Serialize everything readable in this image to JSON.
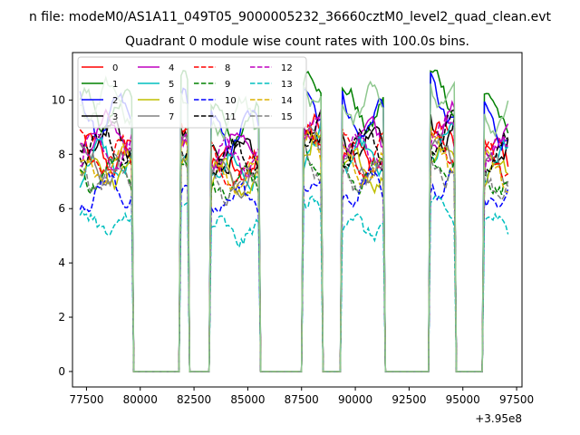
{
  "chart_data": {
    "type": "line",
    "suptitle": "n file: modeM0/AS1A11_049T05_9000005232_36660cztM0_level2_quad_clean.evt",
    "title": "Quadrant 0 module wise count rates with 100.0s bins.",
    "xlabel": "",
    "ylabel": "",
    "x_offset_label": "+3.95e8",
    "xlim": [
      76850,
      97750
    ],
    "ylim": [
      -0.57,
      11.75
    ],
    "xticks": [
      77500,
      80000,
      82500,
      85000,
      87500,
      90000,
      92500,
      95000,
      97500
    ],
    "xtick_labels": [
      "77500",
      "80000",
      "82500",
      "85000",
      "87500",
      "90000",
      "92500",
      "95000",
      "97500"
    ],
    "yticks": [
      0,
      2,
      4,
      6,
      8,
      10
    ],
    "ytick_labels": [
      "0",
      "2",
      "4",
      "6",
      "8",
      "10"
    ],
    "grid": false,
    "legend_position": "top-left",
    "legend_columns": 4,
    "x_unit_note": "time offset seconds, 100 s bins",
    "segments": [
      {
        "start": 77200,
        "end": 79600,
        "level": 1.0
      },
      {
        "start": 81900,
        "end": 82200,
        "level": 1.05
      },
      {
        "start": 83300,
        "end": 85500,
        "level": 0.95
      },
      {
        "start": 87600,
        "end": 88400,
        "level": 1.08
      },
      {
        "start": 89400,
        "end": 91300,
        "level": 1.0
      },
      {
        "start": 93500,
        "end": 94600,
        "level": 1.06
      },
      {
        "start": 96000,
        "end": 97100,
        "level": 0.98
      }
    ],
    "series": [
      {
        "name": "0",
        "color": "#ff0000",
        "dash": "solid",
        "mean": 8.0
      },
      {
        "name": "1",
        "color": "#008000",
        "dash": "solid",
        "mean": 9.6
      },
      {
        "name": "2",
        "color": "#0000ff",
        "dash": "solid",
        "mean": 9.3
      },
      {
        "name": "3",
        "color": "#000000",
        "dash": "solid",
        "mean": 8.5
      },
      {
        "name": "4",
        "color": "#bf00bf",
        "dash": "solid",
        "mean": 8.7
      },
      {
        "name": "5",
        "color": "#00bfbf",
        "dash": "solid",
        "mean": 7.8
      },
      {
        "name": "6",
        "color": "#bfbf00",
        "dash": "solid",
        "mean": 7.4
      },
      {
        "name": "7",
        "color": "#808080",
        "dash": "solid",
        "mean": 7.6
      },
      {
        "name": "8",
        "color": "#ff0000",
        "dash": "dashed",
        "mean": 7.9
      },
      {
        "name": "9",
        "color": "#008000",
        "dash": "dashed",
        "mean": 7.3
      },
      {
        "name": "10",
        "color": "#0000ff",
        "dash": "dashed",
        "mean": 6.7
      },
      {
        "name": "11",
        "color": "#000000",
        "dash": "dashed",
        "mean": 8.3
      },
      {
        "name": "12",
        "color": "#bf00bf",
        "dash": "dashed",
        "mean": 8.2
      },
      {
        "name": "13",
        "color": "#00bfbf",
        "dash": "dashed",
        "mean": 5.4
      },
      {
        "name": "14",
        "color": "#dbb000",
        "dash": "dashed",
        "mean": 7.6
      },
      {
        "name": "15",
        "color": "#808080",
        "dash": "dashed",
        "mean": 7.2
      },
      {
        "name": "",
        "color": "#8fc88f",
        "dash": "solid",
        "mean": 9.9
      }
    ]
  }
}
